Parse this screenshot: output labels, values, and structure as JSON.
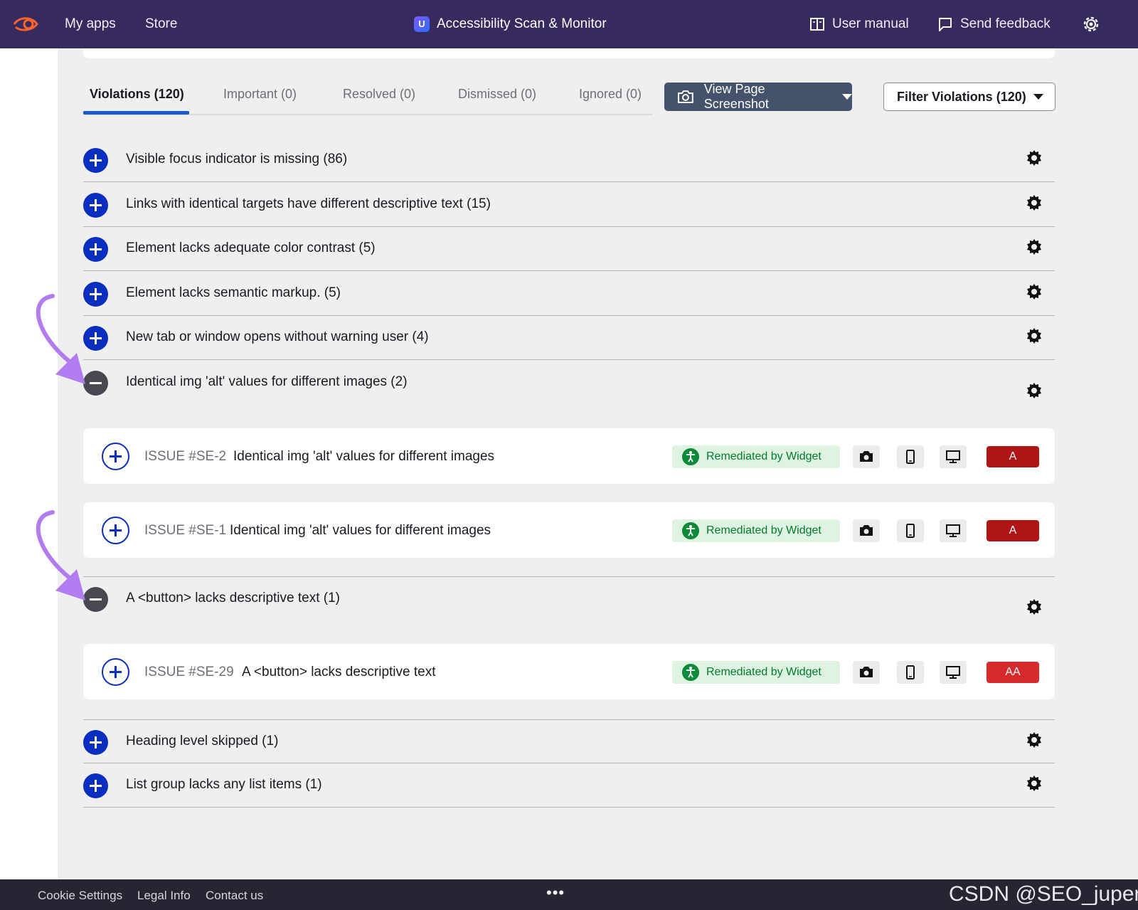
{
  "header": {
    "my_apps": "My apps",
    "store": "Store",
    "app_title": "Accessibility Scan & Monitor",
    "app_badge": "U",
    "user_manual": "User manual",
    "send_feedback": "Send feedback"
  },
  "tabs": [
    {
      "label": "Violations (120)",
      "active": true
    },
    {
      "label": "Important (0)"
    },
    {
      "label": "Resolved (0)"
    },
    {
      "label": "Dismissed (0)"
    },
    {
      "label": "Ignored (0)"
    }
  ],
  "actions": {
    "view_screenshot": "View Page Screenshot",
    "filter": "Filter Violations (120)"
  },
  "violations": [
    {
      "label": "Visible focus indicator is missing (86)",
      "expanded": false
    },
    {
      "label": "Links with identical targets have different descriptive text (15)",
      "expanded": false
    },
    {
      "label": "Element lacks adequate color contrast (5)",
      "expanded": false
    },
    {
      "label": "Element lacks semantic markup. (5)",
      "expanded": false
    },
    {
      "label": "New tab or window opens without warning user (4)",
      "expanded": false
    },
    {
      "label": "Identical img 'alt' values for different images (2)",
      "expanded": true
    },
    {
      "label": "A <button> lacks descriptive text (1)",
      "expanded": true
    },
    {
      "label": "Heading level skipped (1)",
      "expanded": false
    },
    {
      "label": "List group lacks any list items (1)",
      "expanded": false
    }
  ],
  "issues": [
    {
      "id": "ISSUE #SE-2",
      "title": "Identical img 'alt' values for different images",
      "status": "Remediated by Widget",
      "level": "A",
      "level_color": "#b01515"
    },
    {
      "id": "ISSUE #SE-1",
      "title": "Identical img 'alt' values for different images",
      "status": "Remediated by Widget",
      "level": "A",
      "level_color": "#b01515"
    },
    {
      "id": "ISSUE #SE-29",
      "title": "A <button> lacks descriptive text",
      "status": "Remediated by Widget",
      "level": "AA",
      "level_color": "#d72a2a"
    }
  ],
  "footer": {
    "cookie": "Cookie Settings",
    "legal": "Legal Info",
    "contact": "Contact us",
    "more": "•••",
    "watermark": "CSDN @SEO_juper"
  },
  "colors": {
    "topbar": "#362a5e",
    "accent_blue": "#0a2ebf",
    "remediated_green": "#007c2d",
    "arrow_purple": "#b07cf0"
  }
}
